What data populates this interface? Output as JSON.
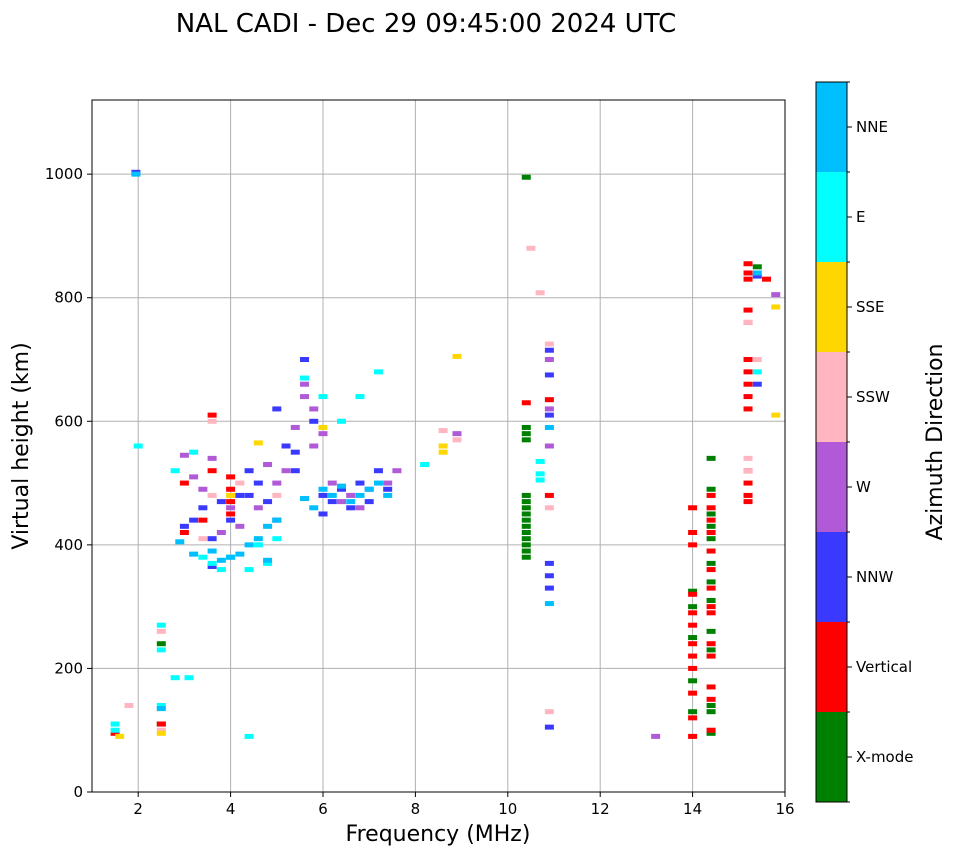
{
  "chart_data": {
    "type": "scatter",
    "title": "NAL CADI - Dec 29 09:45:00 2024 UTC",
    "xlabel": "Frequency (MHz)",
    "ylabel": "Virtual height (km)",
    "xlim": [
      1,
      16
    ],
    "ylim": [
      0,
      1120
    ],
    "x_ticks": [
      2,
      4,
      6,
      8,
      10,
      12,
      14,
      16
    ],
    "y_ticks": [
      0,
      200,
      400,
      600,
      800,
      1000
    ],
    "grid": true,
    "colorbar": {
      "label": "Azimuth Direction",
      "categories": [
        {
          "name": "X-mode",
          "color": "#008000"
        },
        {
          "name": "Vertical",
          "color": "#ff0000"
        },
        {
          "name": "NNW",
          "color": "#3a3aff"
        },
        {
          "name": "W",
          "color": "#b05ad8"
        },
        {
          "name": "SSW",
          "color": "#ffb6c1"
        },
        {
          "name": "SSE",
          "color": "#ffd700"
        },
        {
          "name": "E",
          "color": "#00ffff"
        },
        {
          "name": "NNE",
          "color": "#00bfff"
        }
      ]
    },
    "series": [
      {
        "name": "X-mode",
        "points": [
          [
            10.4,
            995
          ],
          [
            10.4,
            590
          ],
          [
            10.4,
            580
          ],
          [
            10.4,
            570
          ],
          [
            10.4,
            480
          ],
          [
            10.4,
            470
          ],
          [
            10.4,
            460
          ],
          [
            10.4,
            450
          ],
          [
            10.4,
            440
          ],
          [
            10.4,
            430
          ],
          [
            10.4,
            420
          ],
          [
            10.4,
            410
          ],
          [
            10.4,
            400
          ],
          [
            10.4,
            390
          ],
          [
            10.4,
            380
          ],
          [
            14.4,
            540
          ],
          [
            14.4,
            490
          ],
          [
            14.4,
            450
          ],
          [
            14.4,
            430
          ],
          [
            14.4,
            410
          ],
          [
            14.4,
            370
          ],
          [
            14.4,
            340
          ],
          [
            14.4,
            310
          ],
          [
            14.4,
            260
          ],
          [
            14.4,
            230
          ],
          [
            14.4,
            140
          ],
          [
            14.4,
            130
          ],
          [
            14.4,
            95
          ],
          [
            14.0,
            325
          ],
          [
            14.0,
            300
          ],
          [
            14.0,
            250
          ],
          [
            14.0,
            180
          ],
          [
            14.0,
            130
          ],
          [
            15.4,
            850
          ],
          [
            2.5,
            110
          ],
          [
            2.5,
            240
          ]
        ]
      },
      {
        "name": "Vertical",
        "points": [
          [
            14.0,
            460
          ],
          [
            14.0,
            420
          ],
          [
            14.0,
            400
          ],
          [
            14.0,
            320
          ],
          [
            14.0,
            290
          ],
          [
            14.0,
            270
          ],
          [
            14.0,
            240
          ],
          [
            14.0,
            220
          ],
          [
            14.0,
            200
          ],
          [
            14.0,
            160
          ],
          [
            14.0,
            120
          ],
          [
            14.0,
            90
          ],
          [
            14.4,
            480
          ],
          [
            14.4,
            460
          ],
          [
            14.4,
            440
          ],
          [
            14.4,
            420
          ],
          [
            14.4,
            390
          ],
          [
            14.4,
            360
          ],
          [
            14.4,
            330
          ],
          [
            14.4,
            300
          ],
          [
            14.4,
            290
          ],
          [
            14.4,
            240
          ],
          [
            14.4,
            220
          ],
          [
            14.4,
            170
          ],
          [
            14.4,
            150
          ],
          [
            14.4,
            100
          ],
          [
            15.2,
            855
          ],
          [
            15.2,
            840
          ],
          [
            15.2,
            830
          ],
          [
            15.2,
            780
          ],
          [
            15.2,
            760
          ],
          [
            15.2,
            700
          ],
          [
            15.2,
            680
          ],
          [
            15.2,
            660
          ],
          [
            15.2,
            640
          ],
          [
            15.2,
            620
          ],
          [
            15.2,
            520
          ],
          [
            15.2,
            500
          ],
          [
            15.2,
            480
          ],
          [
            15.2,
            470
          ],
          [
            15.6,
            830
          ],
          [
            4.0,
            510
          ],
          [
            4.0,
            490
          ],
          [
            4.0,
            470
          ],
          [
            4.0,
            450
          ],
          [
            3.6,
            610
          ],
          [
            3.4,
            440
          ],
          [
            3.6,
            520
          ],
          [
            3.0,
            500
          ],
          [
            1.5,
            95
          ],
          [
            2.5,
            110
          ],
          [
            3.0,
            420
          ],
          [
            10.4,
            630
          ],
          [
            10.9,
            635
          ],
          [
            10.9,
            480
          ]
        ]
      },
      {
        "name": "NNW",
        "points": [
          [
            1.95,
            1003
          ],
          [
            3.0,
            430
          ],
          [
            3.2,
            440
          ],
          [
            3.4,
            460
          ],
          [
            3.6,
            410
          ],
          [
            3.8,
            470
          ],
          [
            4.0,
            440
          ],
          [
            4.2,
            480
          ],
          [
            4.4,
            520
          ],
          [
            4.6,
            500
          ],
          [
            4.8,
            470
          ],
          [
            5.0,
            440
          ],
          [
            5.2,
            560
          ],
          [
            5.4,
            520
          ],
          [
            5.6,
            700
          ],
          [
            5.8,
            600
          ],
          [
            6.0,
            480
          ],
          [
            6.2,
            470
          ],
          [
            6.4,
            490
          ],
          [
            6.6,
            460
          ],
          [
            6.8,
            500
          ],
          [
            7.0,
            470
          ],
          [
            7.2,
            520
          ],
          [
            7.4,
            490
          ],
          [
            5.0,
            620
          ],
          [
            5.4,
            550
          ],
          [
            10.9,
            715
          ],
          [
            10.9,
            675
          ],
          [
            10.9,
            610
          ],
          [
            10.9,
            370
          ],
          [
            10.9,
            350
          ],
          [
            10.9,
            330
          ],
          [
            10.9,
            105
          ],
          [
            15.4,
            660
          ],
          [
            15.4,
            835
          ],
          [
            3.6,
            365
          ],
          [
            4.4,
            480
          ],
          [
            6.0,
            450
          ]
        ]
      },
      {
        "name": "W",
        "points": [
          [
            3.0,
            545
          ],
          [
            3.2,
            510
          ],
          [
            3.4,
            490
          ],
          [
            3.6,
            540
          ],
          [
            4.0,
            460
          ],
          [
            4.2,
            430
          ],
          [
            4.8,
            530
          ],
          [
            5.0,
            500
          ],
          [
            5.2,
            520
          ],
          [
            5.4,
            590
          ],
          [
            5.6,
            660
          ],
          [
            5.8,
            620
          ],
          [
            6.0,
            580
          ],
          [
            6.2,
            500
          ],
          [
            6.4,
            470
          ],
          [
            6.6,
            480
          ],
          [
            6.8,
            460
          ],
          [
            7.0,
            490
          ],
          [
            7.4,
            500
          ],
          [
            7.6,
            520
          ],
          [
            8.9,
            580
          ],
          [
            10.9,
            700
          ],
          [
            10.9,
            620
          ],
          [
            10.9,
            560
          ],
          [
            13.2,
            90
          ],
          [
            15.8,
            805
          ],
          [
            5.6,
            640
          ],
          [
            5.8,
            560
          ],
          [
            4.6,
            460
          ],
          [
            3.8,
            420
          ]
        ]
      },
      {
        "name": "SSW",
        "points": [
          [
            2.5,
            260
          ],
          [
            2.5,
            100
          ],
          [
            3.4,
            410
          ],
          [
            3.6,
            480
          ],
          [
            4.2,
            500
          ],
          [
            5.0,
            480
          ],
          [
            8.6,
            585
          ],
          [
            8.9,
            570
          ],
          [
            10.7,
            808
          ],
          [
            10.5,
            880
          ],
          [
            10.9,
            725
          ],
          [
            10.9,
            460
          ],
          [
            10.9,
            130
          ],
          [
            15.2,
            540
          ],
          [
            15.2,
            520
          ],
          [
            15.4,
            700
          ],
          [
            1.8,
            140
          ],
          [
            3.6,
            600
          ],
          [
            15.2,
            760
          ]
        ]
      },
      {
        "name": "SSE",
        "points": [
          [
            8.6,
            560
          ],
          [
            8.6,
            550
          ],
          [
            8.9,
            705
          ],
          [
            15.8,
            785
          ],
          [
            15.8,
            610
          ],
          [
            1.6,
            90
          ],
          [
            2.5,
            95
          ],
          [
            4.0,
            480
          ],
          [
            4.6,
            565
          ],
          [
            6.0,
            590
          ]
        ]
      },
      {
        "name": "E",
        "points": [
          [
            1.5,
            110
          ],
          [
            1.5,
            100
          ],
          [
            2.5,
            270
          ],
          [
            2.5,
            230
          ],
          [
            2.8,
            185
          ],
          [
            3.1,
            185
          ],
          [
            4.4,
            90
          ],
          [
            2.5,
            140
          ],
          [
            2.0,
            560
          ],
          [
            2.8,
            520
          ],
          [
            3.2,
            550
          ],
          [
            3.4,
            380
          ],
          [
            3.6,
            370
          ],
          [
            3.8,
            360
          ],
          [
            4.0,
            380
          ],
          [
            4.4,
            360
          ],
          [
            4.6,
            400
          ],
          [
            4.8,
            370
          ],
          [
            5.0,
            410
          ],
          [
            5.6,
            670
          ],
          [
            6.0,
            640
          ],
          [
            6.4,
            600
          ],
          [
            6.8,
            640
          ],
          [
            7.2,
            680
          ],
          [
            8.2,
            530
          ],
          [
            10.7,
            515
          ],
          [
            10.7,
            535
          ],
          [
            10.7,
            505
          ],
          [
            15.4,
            680
          ]
        ]
      },
      {
        "name": "NNE",
        "points": [
          [
            1.95,
            1000
          ],
          [
            3.6,
            390
          ],
          [
            3.8,
            375
          ],
          [
            4.0,
            380
          ],
          [
            4.2,
            385
          ],
          [
            4.4,
            400
          ],
          [
            4.6,
            410
          ],
          [
            4.8,
            430
          ],
          [
            5.0,
            440
          ],
          [
            5.6,
            475
          ],
          [
            5.8,
            460
          ],
          [
            6.0,
            490
          ],
          [
            6.2,
            480
          ],
          [
            6.4,
            495
          ],
          [
            6.6,
            470
          ],
          [
            6.8,
            480
          ],
          [
            7.0,
            490
          ],
          [
            7.2,
            500
          ],
          [
            7.4,
            480
          ],
          [
            10.9,
            305
          ],
          [
            10.9,
            590
          ],
          [
            15.4,
            840
          ],
          [
            2.5,
            135
          ],
          [
            2.9,
            405
          ],
          [
            3.2,
            385
          ],
          [
            4.8,
            375
          ]
        ]
      }
    ]
  }
}
